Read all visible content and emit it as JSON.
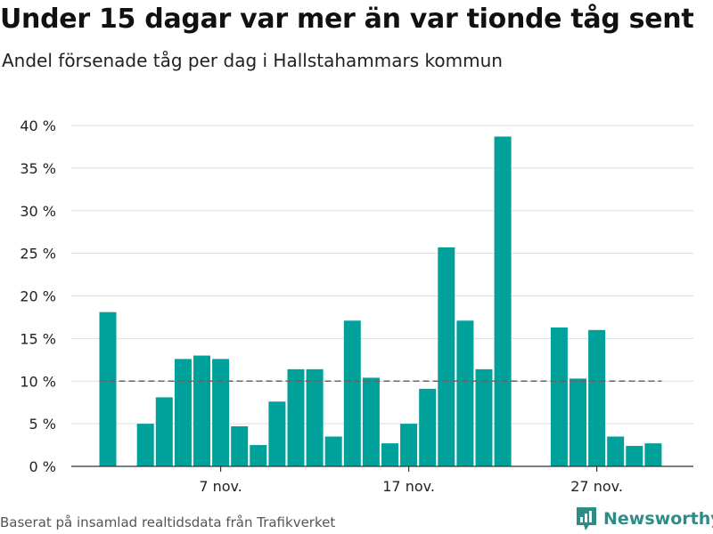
{
  "title": "Under 15 dagar var mer än var tionde tåg sent",
  "subtitle": "Andel försenade tåg per dag i Hallstahammars kommun",
  "source": "Baserat på insamlad realtidsdata från Trafikverket",
  "brand": {
    "name": "Newsworthy",
    "icon": "newsworthy-logo-icon"
  },
  "colors": {
    "bar": "#00a19a",
    "reference_line": "#666666",
    "grid": "#dddddd",
    "brand": "#2e8c86"
  },
  "chart_data": {
    "type": "bar",
    "title": "Under 15 dagar var mer än var tionde tåg sent",
    "subtitle": "Andel försenade tåg per dag i Hallstahammars kommun",
    "xlabel": "",
    "ylabel": "",
    "unit": "%",
    "ylim": [
      0,
      40
    ],
    "yticks": [
      0,
      5,
      10,
      15,
      20,
      25,
      30,
      35,
      40
    ],
    "ytick_labels": [
      "0 %",
      "5 %",
      "10 %",
      "15 %",
      "20 %",
      "25 %",
      "30 %",
      "35 %",
      "40 %"
    ],
    "x_tick_labels": [
      {
        "day_index": 6,
        "label": "7 nov."
      },
      {
        "day_index": 16,
        "label": "17 nov."
      },
      {
        "day_index": 26,
        "label": "27 nov."
      }
    ],
    "days": [
      "1 nov.",
      "2 nov.",
      "3 nov.",
      "4 nov.",
      "5 nov.",
      "6 nov.",
      "7 nov.",
      "8 nov.",
      "9 nov.",
      "10 nov.",
      "11 nov.",
      "12 nov.",
      "13 nov.",
      "14 nov.",
      "15 nov.",
      "16 nov.",
      "17 nov.",
      "18 nov.",
      "19 nov.",
      "20 nov.",
      "21 nov.",
      "22 nov.",
      "23 nov.",
      "24 nov.",
      "25 nov.",
      "26 nov.",
      "27 nov.",
      "28 nov.",
      "29 nov.",
      "30 nov."
    ],
    "values": [
      18.1,
      null,
      5.0,
      8.1,
      12.6,
      13.0,
      12.6,
      4.7,
      2.5,
      7.6,
      11.4,
      11.4,
      3.5,
      17.1,
      10.4,
      2.7,
      5.0,
      9.1,
      25.7,
      17.1,
      11.4,
      38.7,
      null,
      null,
      16.3,
      10.3,
      16.0,
      3.5,
      2.4,
      2.7
    ],
    "reference_line": {
      "value": 10,
      "style": "dashed"
    },
    "grid": true,
    "legend": false
  }
}
